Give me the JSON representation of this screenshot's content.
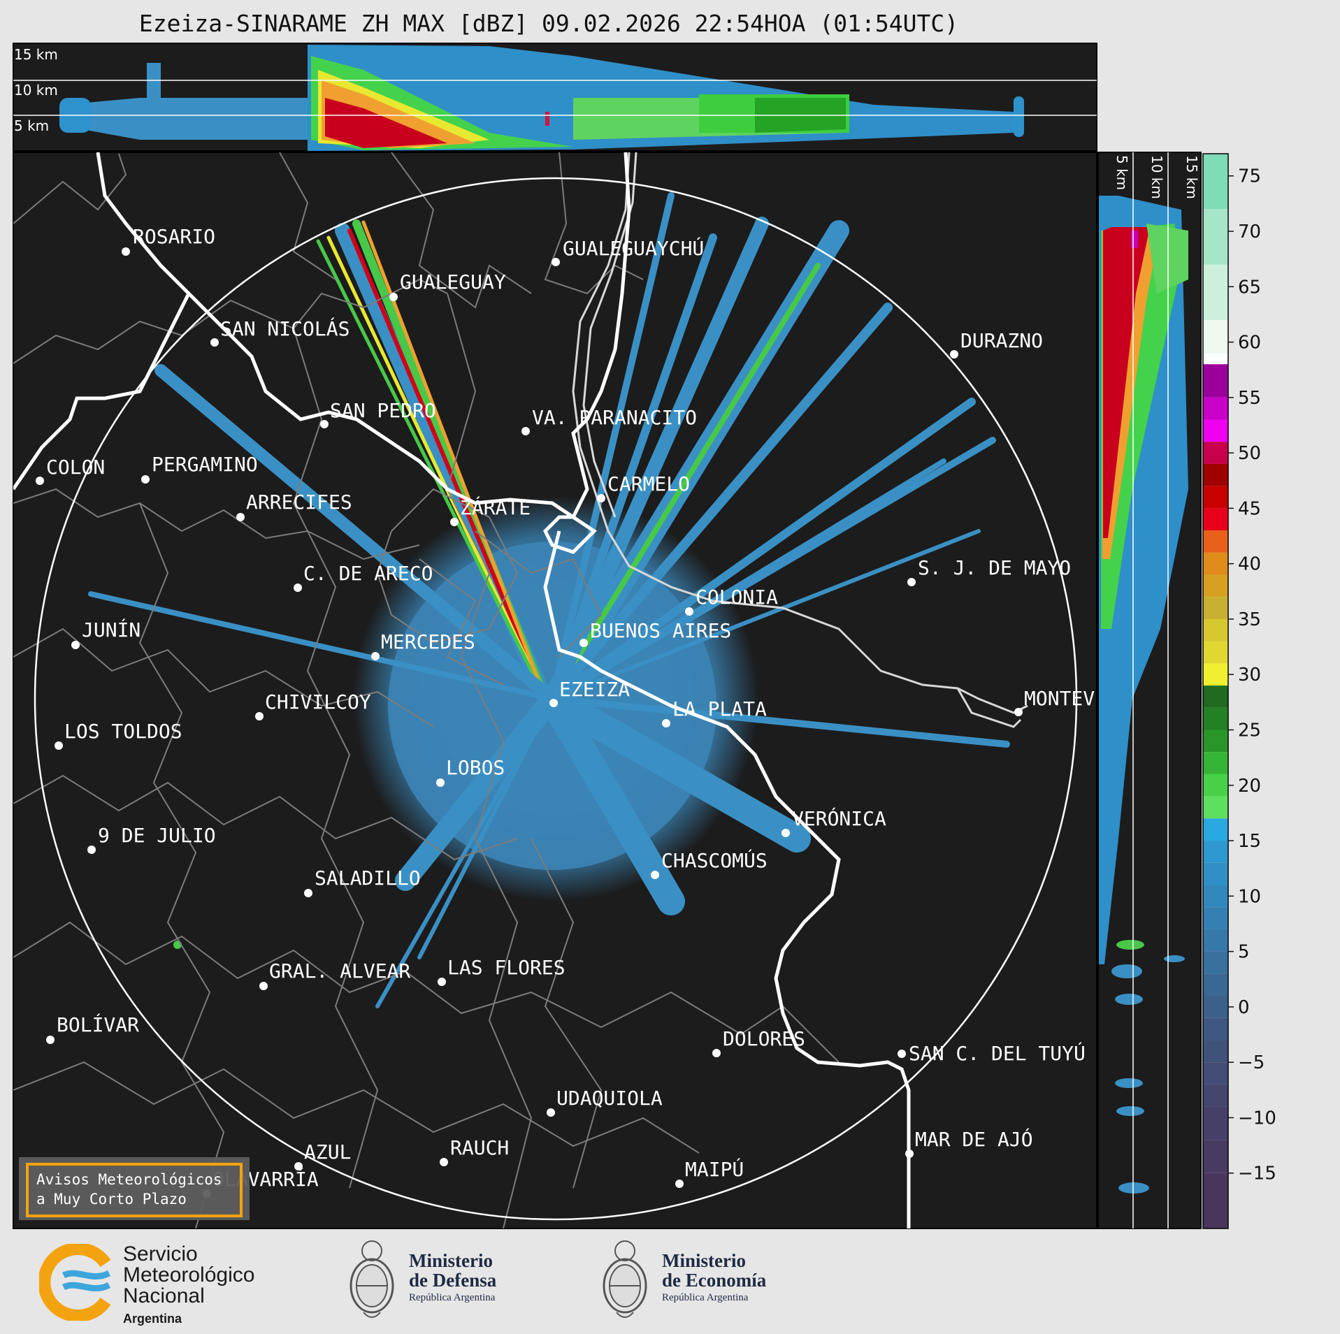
{
  "title": "Ezeiza-SINARAME ZH MAX [dBZ] 09.02.2026 22:54HOA (01:54UTC)",
  "top_panel": {
    "levels": [
      "15 km",
      "10 km",
      "5 km"
    ]
  },
  "side_panel": {
    "levels": [
      "5 km",
      "10 km",
      "15 km"
    ]
  },
  "colorbar": {
    "ticks": [
      "75",
      "70",
      "65",
      "60",
      "55",
      "50",
      "45",
      "40",
      "35",
      "30",
      "25",
      "20",
      "15",
      "10",
      "5",
      "0",
      "−5",
      "−10",
      "−15"
    ]
  },
  "cities": [
    {
      "name": "ROSARIO"
    },
    {
      "name": "GUALEGUAYCHÚ"
    },
    {
      "name": "GUALEGUAY"
    },
    {
      "name": "SAN NICOLÁS"
    },
    {
      "name": "DURAZNO"
    },
    {
      "name": "SAN PEDRO"
    },
    {
      "name": "VA. PARANACITO"
    },
    {
      "name": "COLON"
    },
    {
      "name": "PERGAMINO"
    },
    {
      "name": "CARMELO"
    },
    {
      "name": "ARRECIFES"
    },
    {
      "name": "ZÁRATE"
    },
    {
      "name": "S. J. DE MAYO"
    },
    {
      "name": "C. DE ARECO"
    },
    {
      "name": "COLONIA"
    },
    {
      "name": "JUNÍN"
    },
    {
      "name": "BUENOS AIRES"
    },
    {
      "name": "MERCEDES"
    },
    {
      "name": "EZEIZA"
    },
    {
      "name": "MONTEV"
    },
    {
      "name": "CHIVILCOY"
    },
    {
      "name": "LA PLATA"
    },
    {
      "name": "LOS TOLDOS"
    },
    {
      "name": "LOBOS"
    },
    {
      "name": "VERÓNICA"
    },
    {
      "name": "9 DE JULIO"
    },
    {
      "name": "CHASCOMÚS"
    },
    {
      "name": "SALADILLO"
    },
    {
      "name": "GRAL. ALVEAR"
    },
    {
      "name": "LAS FLORES"
    },
    {
      "name": "BOLÍVAR"
    },
    {
      "name": "DOLORES"
    },
    {
      "name": "SAN C. DEL TUYÚ"
    },
    {
      "name": "UDAQUIOLA"
    },
    {
      "name": "MAR DE AJÓ"
    },
    {
      "name": "AZUL"
    },
    {
      "name": "RAUCH"
    },
    {
      "name": "MAIPÚ"
    },
    {
      "name": "OLAVARRÍA"
    }
  ],
  "notice": {
    "line1": "Avisos Meteorológicos",
    "line2": "a Muy Corto Plazo"
  },
  "logos": {
    "smn": {
      "l1": "Servicio",
      "l2": "Meteorológico",
      "l3": "Nacional",
      "l4": "Argentina"
    },
    "defensa": {
      "l1": "Ministerio",
      "l2": "de Defensa",
      "l3": "República Argentina"
    },
    "economia": {
      "l1": "Ministerio",
      "l2": "de Economía",
      "l3": "República Argentina"
    }
  }
}
